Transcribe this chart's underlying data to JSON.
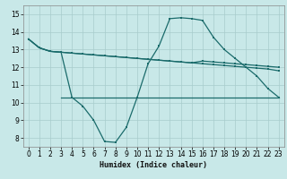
{
  "xlabel": "Humidex (Indice chaleur)",
  "xlim": [
    -0.5,
    23.5
  ],
  "ylim": [
    7.5,
    15.5
  ],
  "xticks": [
    0,
    1,
    2,
    3,
    4,
    5,
    6,
    7,
    8,
    9,
    10,
    11,
    12,
    13,
    14,
    15,
    16,
    17,
    18,
    19,
    20,
    21,
    22,
    23
  ],
  "yticks": [
    8,
    9,
    10,
    11,
    12,
    13,
    14,
    15
  ],
  "background_color": "#c8e8e8",
  "grid_color": "#a8cccc",
  "line_color": "#1a6b6b",
  "hours": [
    0,
    1,
    2,
    3,
    4,
    5,
    6,
    7,
    8,
    9,
    10,
    11,
    12,
    13,
    14,
    15,
    16,
    17,
    18,
    19,
    20,
    21,
    22,
    23
  ],
  "line_top": [
    13.6,
    13.1,
    12.9,
    12.85,
    12.8,
    12.75,
    12.7,
    12.65,
    12.6,
    12.55,
    12.5,
    12.45,
    12.4,
    12.35,
    12.3,
    12.25,
    12.35,
    12.3,
    12.25,
    12.2,
    12.15,
    12.1,
    12.05,
    12.0
  ],
  "line_mid": [
    13.6,
    13.1,
    12.9,
    12.85,
    12.8,
    12.75,
    12.7,
    12.65,
    12.6,
    12.55,
    12.5,
    12.45,
    12.4,
    12.35,
    12.3,
    12.25,
    12.2,
    12.15,
    12.1,
    12.05,
    12.0,
    11.95,
    11.9,
    11.8
  ],
  "line_wavy": [
    13.6,
    13.1,
    12.9,
    12.85,
    10.3,
    9.8,
    9.0,
    7.8,
    7.75,
    8.6,
    10.3,
    12.2,
    13.2,
    14.75,
    14.8,
    14.75,
    14.65,
    13.7,
    13.0,
    12.5,
    12.0,
    11.5,
    10.8,
    10.3
  ],
  "line_flat_y": 10.3,
  "line_flat_xstart": 3,
  "line_flat_xend": 23
}
